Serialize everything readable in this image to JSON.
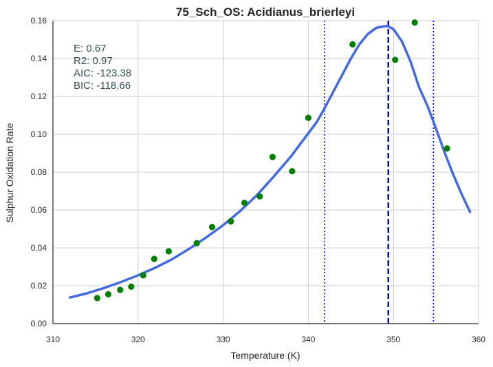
{
  "chart_data": {
    "type": "scatter",
    "title": "75_Sch_OS: Acidianus_brierleyi",
    "xlabel": "Temperature (K)",
    "ylabel": "Sulphur Oxidation Rate",
    "xlim": [
      310,
      360
    ],
    "ylim": [
      0,
      0.16
    ],
    "xticks": [
      310,
      320,
      330,
      340,
      350,
      360
    ],
    "yticks": [
      0.0,
      0.02,
      0.04,
      0.06,
      0.08,
      0.1,
      0.12,
      0.14,
      0.16
    ],
    "ytick_labels": [
      "0.00",
      "0.02",
      "0.04",
      "0.06",
      "0.08",
      "0.10",
      "0.12",
      "0.14",
      "0.16"
    ],
    "grid": true,
    "stats_lines": [
      "E:  0.67",
      "R2:  0.97",
      "AIC: -123.38",
      "BIC: -118.66"
    ],
    "points": {
      "color": "#008000",
      "x": [
        315.2,
        316.5,
        317.9,
        319.2,
        320.6,
        321.9,
        323.6,
        326.9,
        328.7,
        330.9,
        332.5,
        334.3,
        335.8,
        338.1,
        340.0,
        345.2,
        350.2,
        352.5,
        356.3
      ],
      "y": [
        0.0135,
        0.0155,
        0.0178,
        0.0195,
        0.0255,
        0.0342,
        0.0382,
        0.0425,
        0.051,
        0.054,
        0.0638,
        0.0672,
        0.088,
        0.0805,
        0.1087,
        0.1475,
        0.1393,
        0.159,
        0.0925
      ]
    },
    "fit": {
      "color": "#4169e1",
      "x": [
        312,
        314,
        316,
        318,
        320,
        322,
        324,
        326,
        328,
        330,
        332,
        334,
        336,
        338,
        340,
        341,
        342,
        343,
        344,
        345,
        346,
        347,
        348,
        349,
        349.4,
        350,
        351,
        352,
        353,
        354,
        355,
        356,
        357,
        358,
        359
      ],
      "y": [
        0.0138,
        0.016,
        0.0188,
        0.022,
        0.0255,
        0.0295,
        0.034,
        0.0395,
        0.0455,
        0.052,
        0.0595,
        0.068,
        0.078,
        0.0885,
        0.1005,
        0.1065,
        0.1145,
        0.123,
        0.1315,
        0.14,
        0.1475,
        0.153,
        0.1562,
        0.1571,
        0.157,
        0.1555,
        0.149,
        0.1385,
        0.125,
        0.115,
        0.103,
        0.0905,
        0.079,
        0.0685,
        0.059
      ]
    },
    "vlines": [
      {
        "x": 349.4,
        "style": "dashed",
        "color": "#0000ff"
      },
      {
        "x": 341.9,
        "style": "dotted",
        "color": "#0000ff"
      },
      {
        "x": 354.7,
        "style": "dotted",
        "color": "#0000ff"
      }
    ]
  }
}
